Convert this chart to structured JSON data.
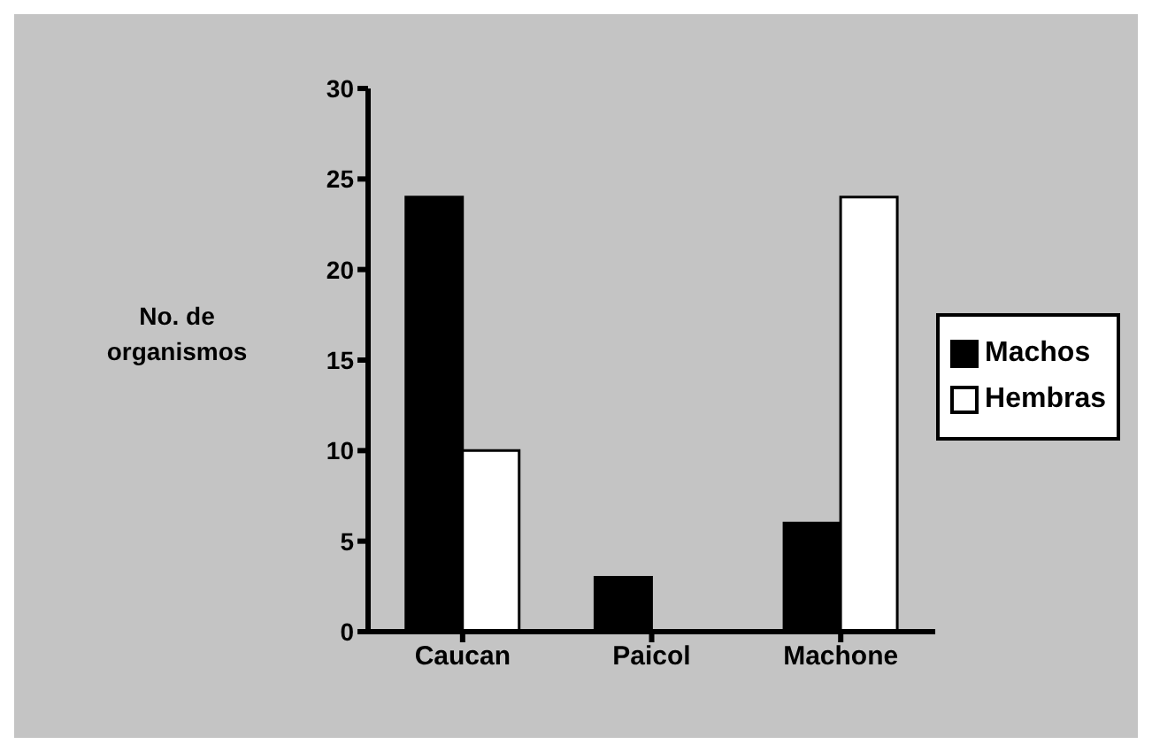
{
  "chart_data": {
    "type": "bar",
    "ylabel": "No. de organismos",
    "categories": [
      "Caucan",
      "Paicol",
      "Machone"
    ],
    "series": [
      {
        "name": "Machos",
        "color": "#000000",
        "values": [
          24,
          3,
          6
        ]
      },
      {
        "name": "Hembras",
        "color": "#ffffff",
        "values": [
          10,
          0,
          24
        ]
      }
    ],
    "ylim": [
      0,
      30
    ],
    "yticks": [
      0,
      5,
      10,
      15,
      20,
      25,
      30
    ],
    "grid": false,
    "legend": "right"
  }
}
